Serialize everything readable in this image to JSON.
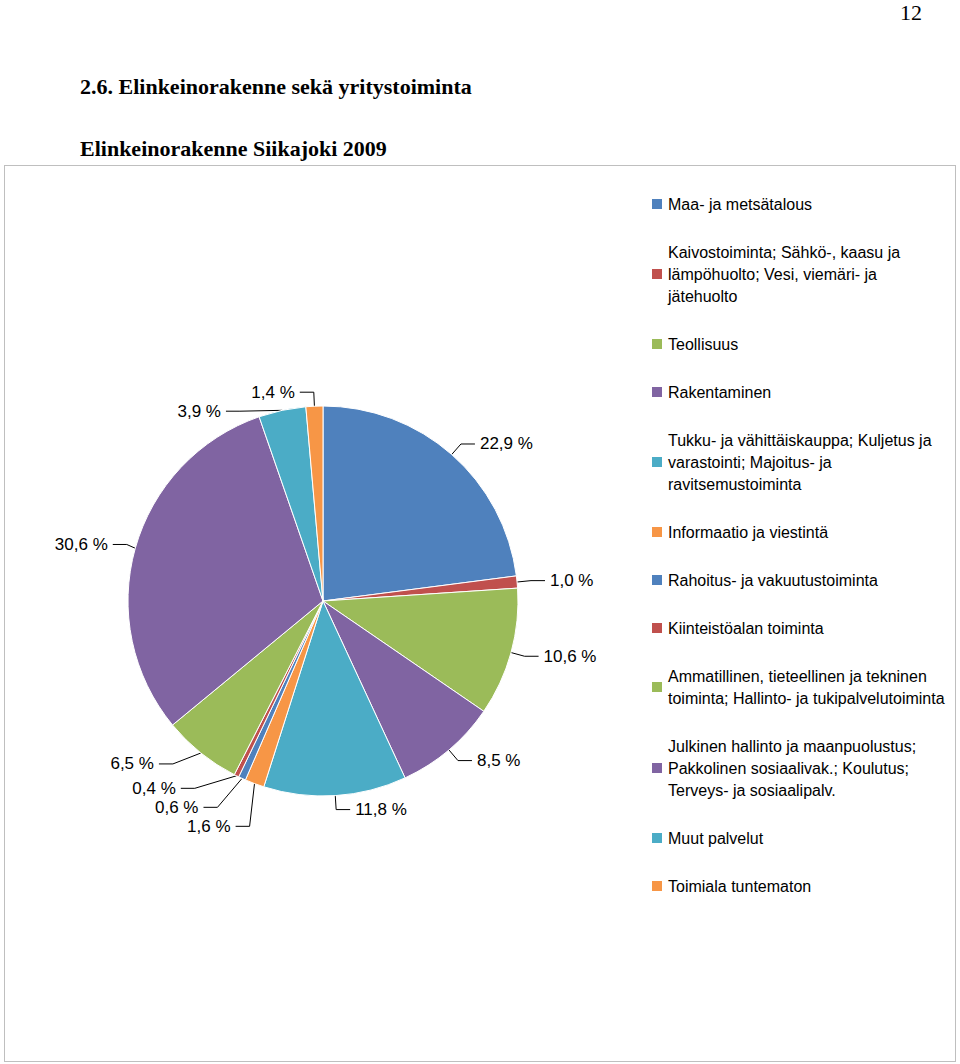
{
  "page": {
    "number": "12",
    "heading": "2.6. Elinkeinorakenne sekä yritystoiminta"
  },
  "chart_data": {
    "type": "pie",
    "title": "Elinkeinorakenne Siikajoki 2009",
    "categories": [
      "Maa- ja metsätalous",
      "Kaivostoiminta; Sähkö-, kaasu ja lämpöhuolto; Vesi, viemäri- ja jätehuolto",
      "Teollisuus",
      "Rakentaminen",
      "Tukku- ja vähittäiskauppa; Kuljetus ja varastointi; Majoitus- ja ravitsemustoiminta",
      "Informaatio ja viestintä",
      "Rahoitus- ja vakuutustoiminta",
      "Kiinteistöalan toiminta",
      "Ammatillinen, tieteellinen ja tekninen toiminta; Hallinto- ja tukipalvelutoiminta",
      "Julkinen hallinto ja maanpuolustus; Pakkolinen sosiaalivak.; Koulutus; Terveys- ja sosiaalipalv.",
      "Muut palvelut",
      "Toimiala tuntematon"
    ],
    "values": [
      22.9,
      1.0,
      10.6,
      8.5,
      11.8,
      1.6,
      0.6,
      0.4,
      6.5,
      30.6,
      3.9,
      1.4
    ],
    "value_labels": [
      "22,9 %",
      "1,0 %",
      "10,6 %",
      "8,5 %",
      "11,8 %",
      "1,6 %",
      "0,6 %",
      "0,4 %",
      "6,5 %",
      "30,6 %",
      "3,9 %",
      "1,4 %"
    ],
    "colors": [
      "#4f81bd",
      "#c0504d",
      "#9bbb59",
      "#8064a2",
      "#4bacc6",
      "#f79646",
      "#4f81bd",
      "#c0504d",
      "#9bbb59",
      "#8064a2",
      "#4bacc6",
      "#f79646"
    ],
    "legend": "right",
    "data_labels": true
  }
}
